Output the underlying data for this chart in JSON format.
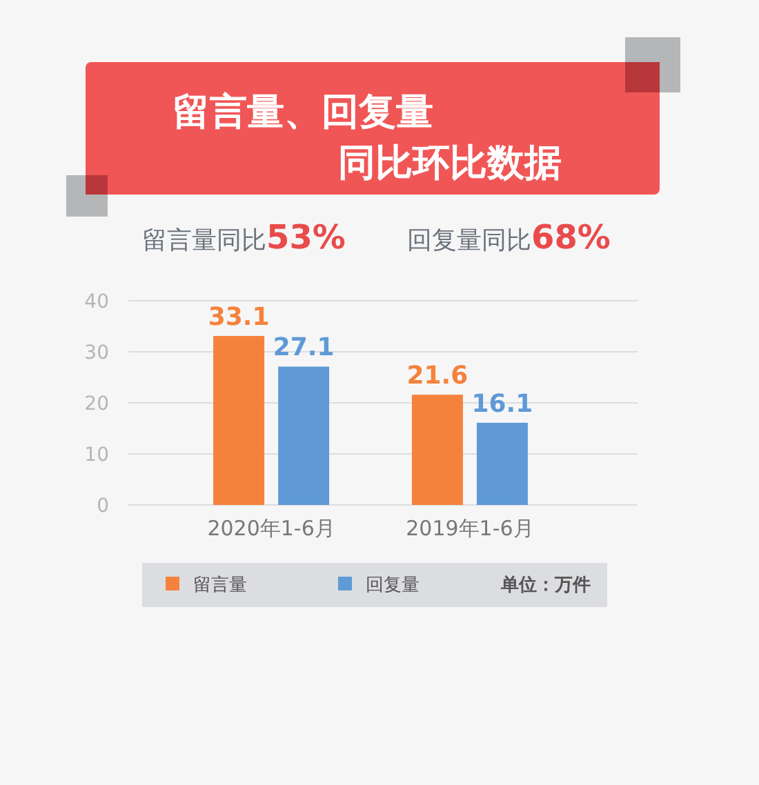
{
  "chart_data": {
    "type": "bar",
    "title": "留言量、回复量同比环比数据",
    "categories": [
      "2020年1-6月",
      "2019年1-6月"
    ],
    "series": [
      {
        "name": "留言量",
        "color": "#f5823c",
        "values": [
          33.1,
          21.6
        ]
      },
      {
        "name": "回复量",
        "color": "#5f9ad6",
        "values": [
          27.1,
          16.1
        ]
      }
    ],
    "ylim": [
      0,
      40
    ],
    "yticks": [
      0,
      10,
      20,
      30,
      40
    ],
    "grid": "y",
    "legend": "bottom",
    "data_labels": true,
    "annotations": [
      "留言量同比53%",
      "回复量同比68%",
      "单位：万件"
    ]
  }
}
